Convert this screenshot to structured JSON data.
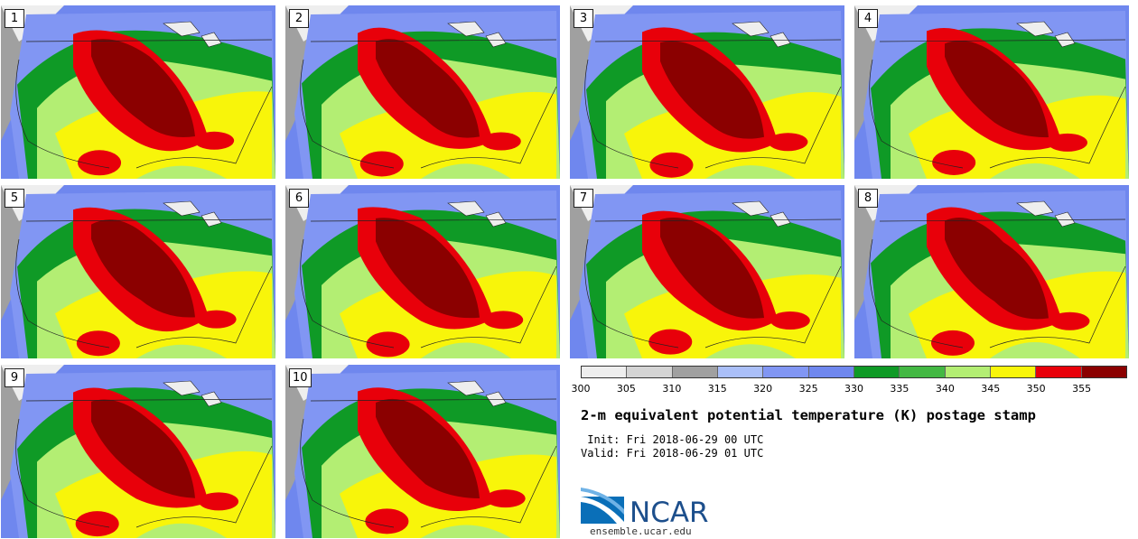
{
  "product": {
    "title": "2-m equivalent potential temperature (K) postage stamp",
    "init": " Init: Fri 2018-06-29 00 UTC",
    "valid": "Valid: Fri 2018-06-29 01 UTC"
  },
  "colorbar": {
    "ticks": [
      "300",
      "305",
      "310",
      "315",
      "320",
      "325",
      "330",
      "335",
      "340",
      "345",
      "350",
      "355"
    ],
    "colors": [
      "#eeeeee",
      "#d4d4d4",
      "#a0a0a0",
      "#aabff8",
      "#8196f3",
      "#6f87ee",
      "#0f9a26",
      "#43b843",
      "#b3ee73",
      "#f8f50a",
      "#e8000a",
      "#8b0000"
    ]
  },
  "panels": [
    {
      "label": "1"
    },
    {
      "label": "2"
    },
    {
      "label": "3"
    },
    {
      "label": "4"
    },
    {
      "label": "5"
    },
    {
      "label": "6"
    },
    {
      "label": "7"
    },
    {
      "label": "8"
    },
    {
      "label": "9"
    },
    {
      "label": "10"
    }
  ],
  "branding": {
    "logo_text": "NCAR",
    "url": "ensemble.ucar.edu"
  }
}
